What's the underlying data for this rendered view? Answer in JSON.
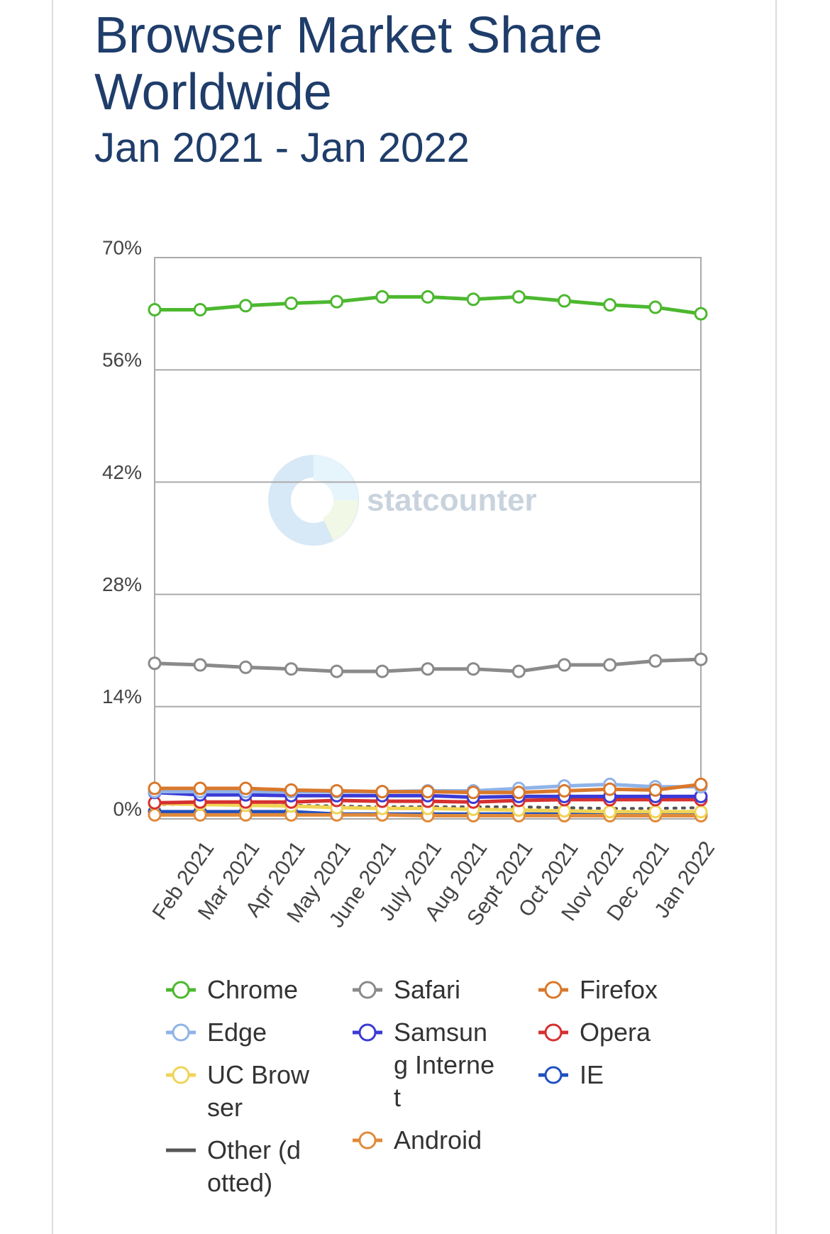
{
  "chart_data": {
    "type": "line",
    "title": "Browser Market Share Worldwide",
    "subtitle": "Jan 2021 - Jan 2022",
    "watermark": "statcounter",
    "categories": [
      null,
      "Feb 2021",
      "Mar 2021",
      "Apr 2021",
      "May 2021",
      "June 2021",
      "July 2021",
      "Aug 2021",
      "Sept 2021",
      "Oct 2021",
      "Nov 2021",
      "Dec 2021",
      "Jan 2022"
    ],
    "ylim": [
      0,
      70
    ],
    "yticks": [
      {
        "value": 0,
        "label": "0%"
      },
      {
        "value": 14,
        "label": "14%"
      },
      {
        "value": 28,
        "label": "28%"
      },
      {
        "value": 42,
        "label": "42%"
      },
      {
        "value": 56,
        "label": "56%"
      },
      {
        "value": 70,
        "label": "70%"
      }
    ],
    "grid": true,
    "series": [
      {
        "name": "Chrome",
        "color": "#4cb82f",
        "values": [
          63.5,
          63.5,
          64.0,
          64.3,
          64.5,
          65.1,
          65.1,
          64.8,
          65.1,
          64.6,
          64.1,
          63.8,
          63.0
        ]
      },
      {
        "name": "Safari",
        "color": "#8a8a8a",
        "values": [
          19.4,
          19.2,
          18.9,
          18.7,
          18.4,
          18.4,
          18.7,
          18.7,
          18.4,
          19.2,
          19.2,
          19.7,
          19.9
        ]
      },
      {
        "name": "Firefox",
        "color": "#d9782b",
        "values": [
          3.8,
          3.8,
          3.8,
          3.6,
          3.5,
          3.4,
          3.4,
          3.3,
          3.3,
          3.5,
          3.7,
          3.6,
          4.3
        ]
      },
      {
        "name": "Edge",
        "color": "#8fb3e8",
        "values": [
          3.4,
          3.4,
          3.4,
          3.4,
          3.4,
          3.4,
          3.5,
          3.5,
          3.8,
          4.1,
          4.3,
          4.0,
          4.0
        ]
      },
      {
        "name": "Samsung Internet",
        "color": "#3a3ad6",
        "values": [
          3.3,
          3.0,
          3.0,
          2.9,
          2.9,
          2.9,
          2.9,
          2.7,
          2.8,
          2.8,
          2.8,
          2.8,
          2.8
        ]
      },
      {
        "name": "Opera",
        "color": "#d63030",
        "values": [
          2.0,
          2.1,
          2.1,
          2.1,
          2.3,
          2.2,
          2.2,
          2.1,
          2.3,
          2.4,
          2.4,
          2.4,
          2.4
        ]
      },
      {
        "name": "UC Browser",
        "color": "#f0d455",
        "values": [
          1.9,
          1.8,
          1.7,
          1.6,
          1.4,
          1.3,
          1.3,
          1.2,
          1.1,
          1.0,
          0.9,
          0.9,
          0.9
        ]
      },
      {
        "name": "Android",
        "color": "#e08a3a",
        "values": [
          0.5,
          0.5,
          0.5,
          0.5,
          0.5,
          0.5,
          0.4,
          0.4,
          0.4,
          0.4,
          0.4,
          0.4,
          0.4
        ]
      },
      {
        "name": "IE",
        "color": "#2050c0",
        "values": [
          0.9,
          0.9,
          0.9,
          0.9,
          0.6,
          0.6,
          0.6,
          0.6,
          0.6,
          0.6,
          0.6,
          0.6,
          0.5
        ]
      },
      {
        "name": "Other (dotted)",
        "color": "#555555",
        "style": "dotted",
        "values": [
          1.8,
          1.8,
          1.7,
          1.7,
          1.6,
          1.5,
          1.5,
          1.5,
          1.5,
          1.4,
          1.3,
          1.3,
          1.4
        ]
      }
    ]
  }
}
